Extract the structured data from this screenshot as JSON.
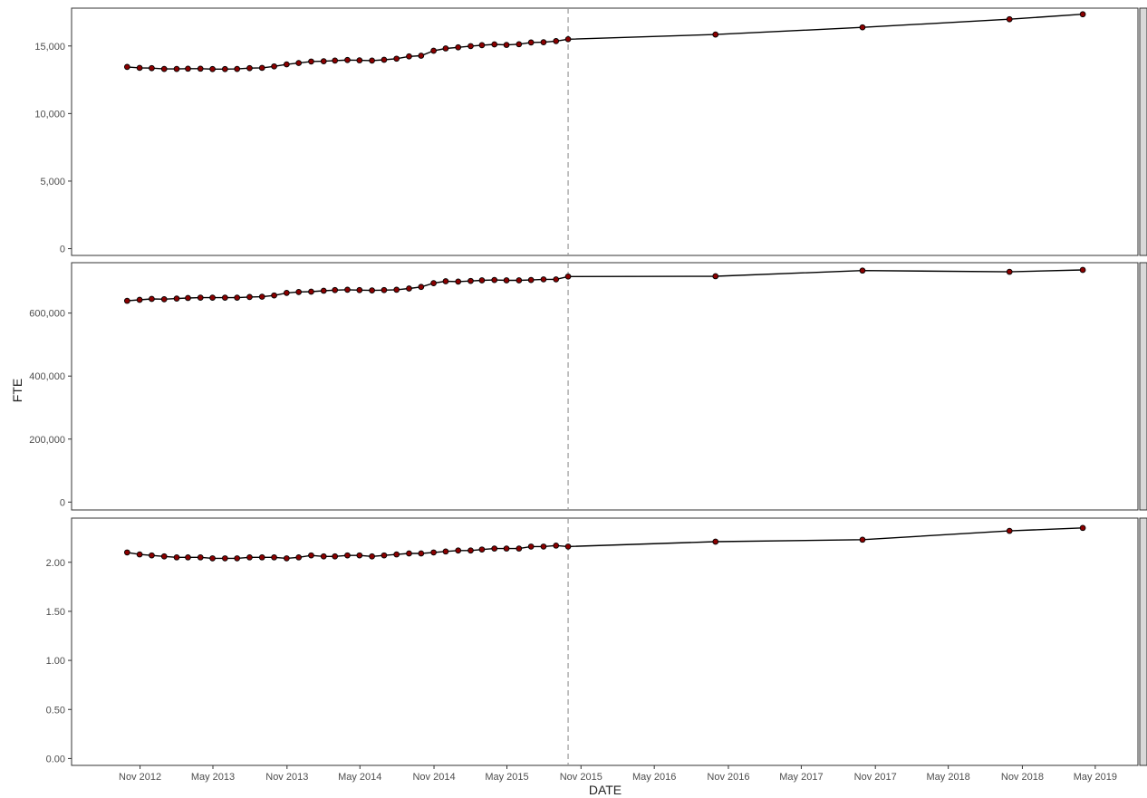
{
  "chart_data": {
    "type": "line",
    "xlabel": "DATE",
    "ylabel": "FTE",
    "x_ticks": [
      "Nov 2012",
      "May 2013",
      "Nov 2013",
      "May 2014",
      "Nov 2014",
      "May 2015",
      "Nov 2015",
      "May 2016",
      "Nov 2016",
      "May 2017",
      "Nov 2017",
      "May 2018",
      "Nov 2018",
      "May 2019"
    ],
    "x_range": [
      "2012-05-15",
      "2019-08-15"
    ],
    "vline_date": "2015-09-30",
    "colors": {
      "point_fill": "#8b0000",
      "line": "#000000",
      "vline": "#999999"
    },
    "dates": [
      "2012-09-30",
      "2012-10-31",
      "2012-11-30",
      "2012-12-31",
      "2013-01-31",
      "2013-02-28",
      "2013-03-31",
      "2013-04-30",
      "2013-05-31",
      "2013-06-30",
      "2013-07-31",
      "2013-08-31",
      "2013-09-30",
      "2013-10-31",
      "2013-11-30",
      "2013-12-31",
      "2014-01-31",
      "2014-02-28",
      "2014-03-31",
      "2014-04-30",
      "2014-05-31",
      "2014-06-30",
      "2014-07-31",
      "2014-08-31",
      "2014-09-30",
      "2014-10-31",
      "2014-11-30",
      "2014-12-31",
      "2015-01-31",
      "2015-02-28",
      "2015-03-31",
      "2015-04-30",
      "2015-05-31",
      "2015-06-30",
      "2015-07-31",
      "2015-08-31",
      "2015-09-30",
      "2016-09-30",
      "2017-09-30",
      "2018-09-30",
      "2019-03-31"
    ],
    "panels": [
      {
        "ylim": [
          -500,
          17800
        ],
        "y_ticks": [
          0,
          5000,
          10000,
          15000
        ],
        "y_tick_labels": [
          "0",
          "5,000",
          "10,000",
          "15,000"
        ],
        "values": [
          13450,
          13380,
          13360,
          13300,
          13300,
          13320,
          13320,
          13290,
          13290,
          13300,
          13360,
          13380,
          13490,
          13640,
          13740,
          13850,
          13870,
          13920,
          13960,
          13940,
          13920,
          13980,
          14060,
          14230,
          14280,
          14650,
          14820,
          14900,
          14990,
          15060,
          15120,
          15080,
          15130,
          15260,
          15280,
          15360,
          15500,
          15850,
          16380,
          16980,
          17350
        ]
      },
      {
        "ylim": [
          -25000,
          760000
        ],
        "y_ticks": [
          0,
          200000,
          400000,
          600000
        ],
        "y_tick_labels": [
          "0",
          "200,000",
          "400,000",
          "600,000"
        ],
        "values": [
          639000,
          642000,
          645000,
          644000,
          646000,
          648000,
          649000,
          649000,
          649000,
          649000,
          651000,
          652000,
          656000,
          664000,
          667000,
          668000,
          671000,
          673000,
          674000,
          673000,
          672000,
          673000,
          674000,
          678000,
          683000,
          695000,
          701000,
          700000,
          702000,
          704000,
          705000,
          704000,
          704000,
          705000,
          707000,
          707000,
          716000,
          717000,
          735000,
          731000,
          737000
        ]
      },
      {
        "ylim": [
          -0.07,
          2.45
        ],
        "y_ticks": [
          0,
          0.5,
          1.0,
          1.5,
          2.0
        ],
        "y_tick_labels": [
          "0.00",
          "0.50",
          "1.00",
          "1.50",
          "2.00"
        ],
        "values": [
          2.1,
          2.08,
          2.07,
          2.06,
          2.05,
          2.05,
          2.05,
          2.04,
          2.04,
          2.04,
          2.05,
          2.05,
          2.05,
          2.04,
          2.05,
          2.07,
          2.06,
          2.06,
          2.07,
          2.07,
          2.06,
          2.07,
          2.08,
          2.09,
          2.09,
          2.1,
          2.11,
          2.12,
          2.12,
          2.13,
          2.14,
          2.14,
          2.14,
          2.16,
          2.16,
          2.17,
          2.16,
          2.21,
          2.23,
          2.32,
          2.35
        ]
      }
    ]
  }
}
